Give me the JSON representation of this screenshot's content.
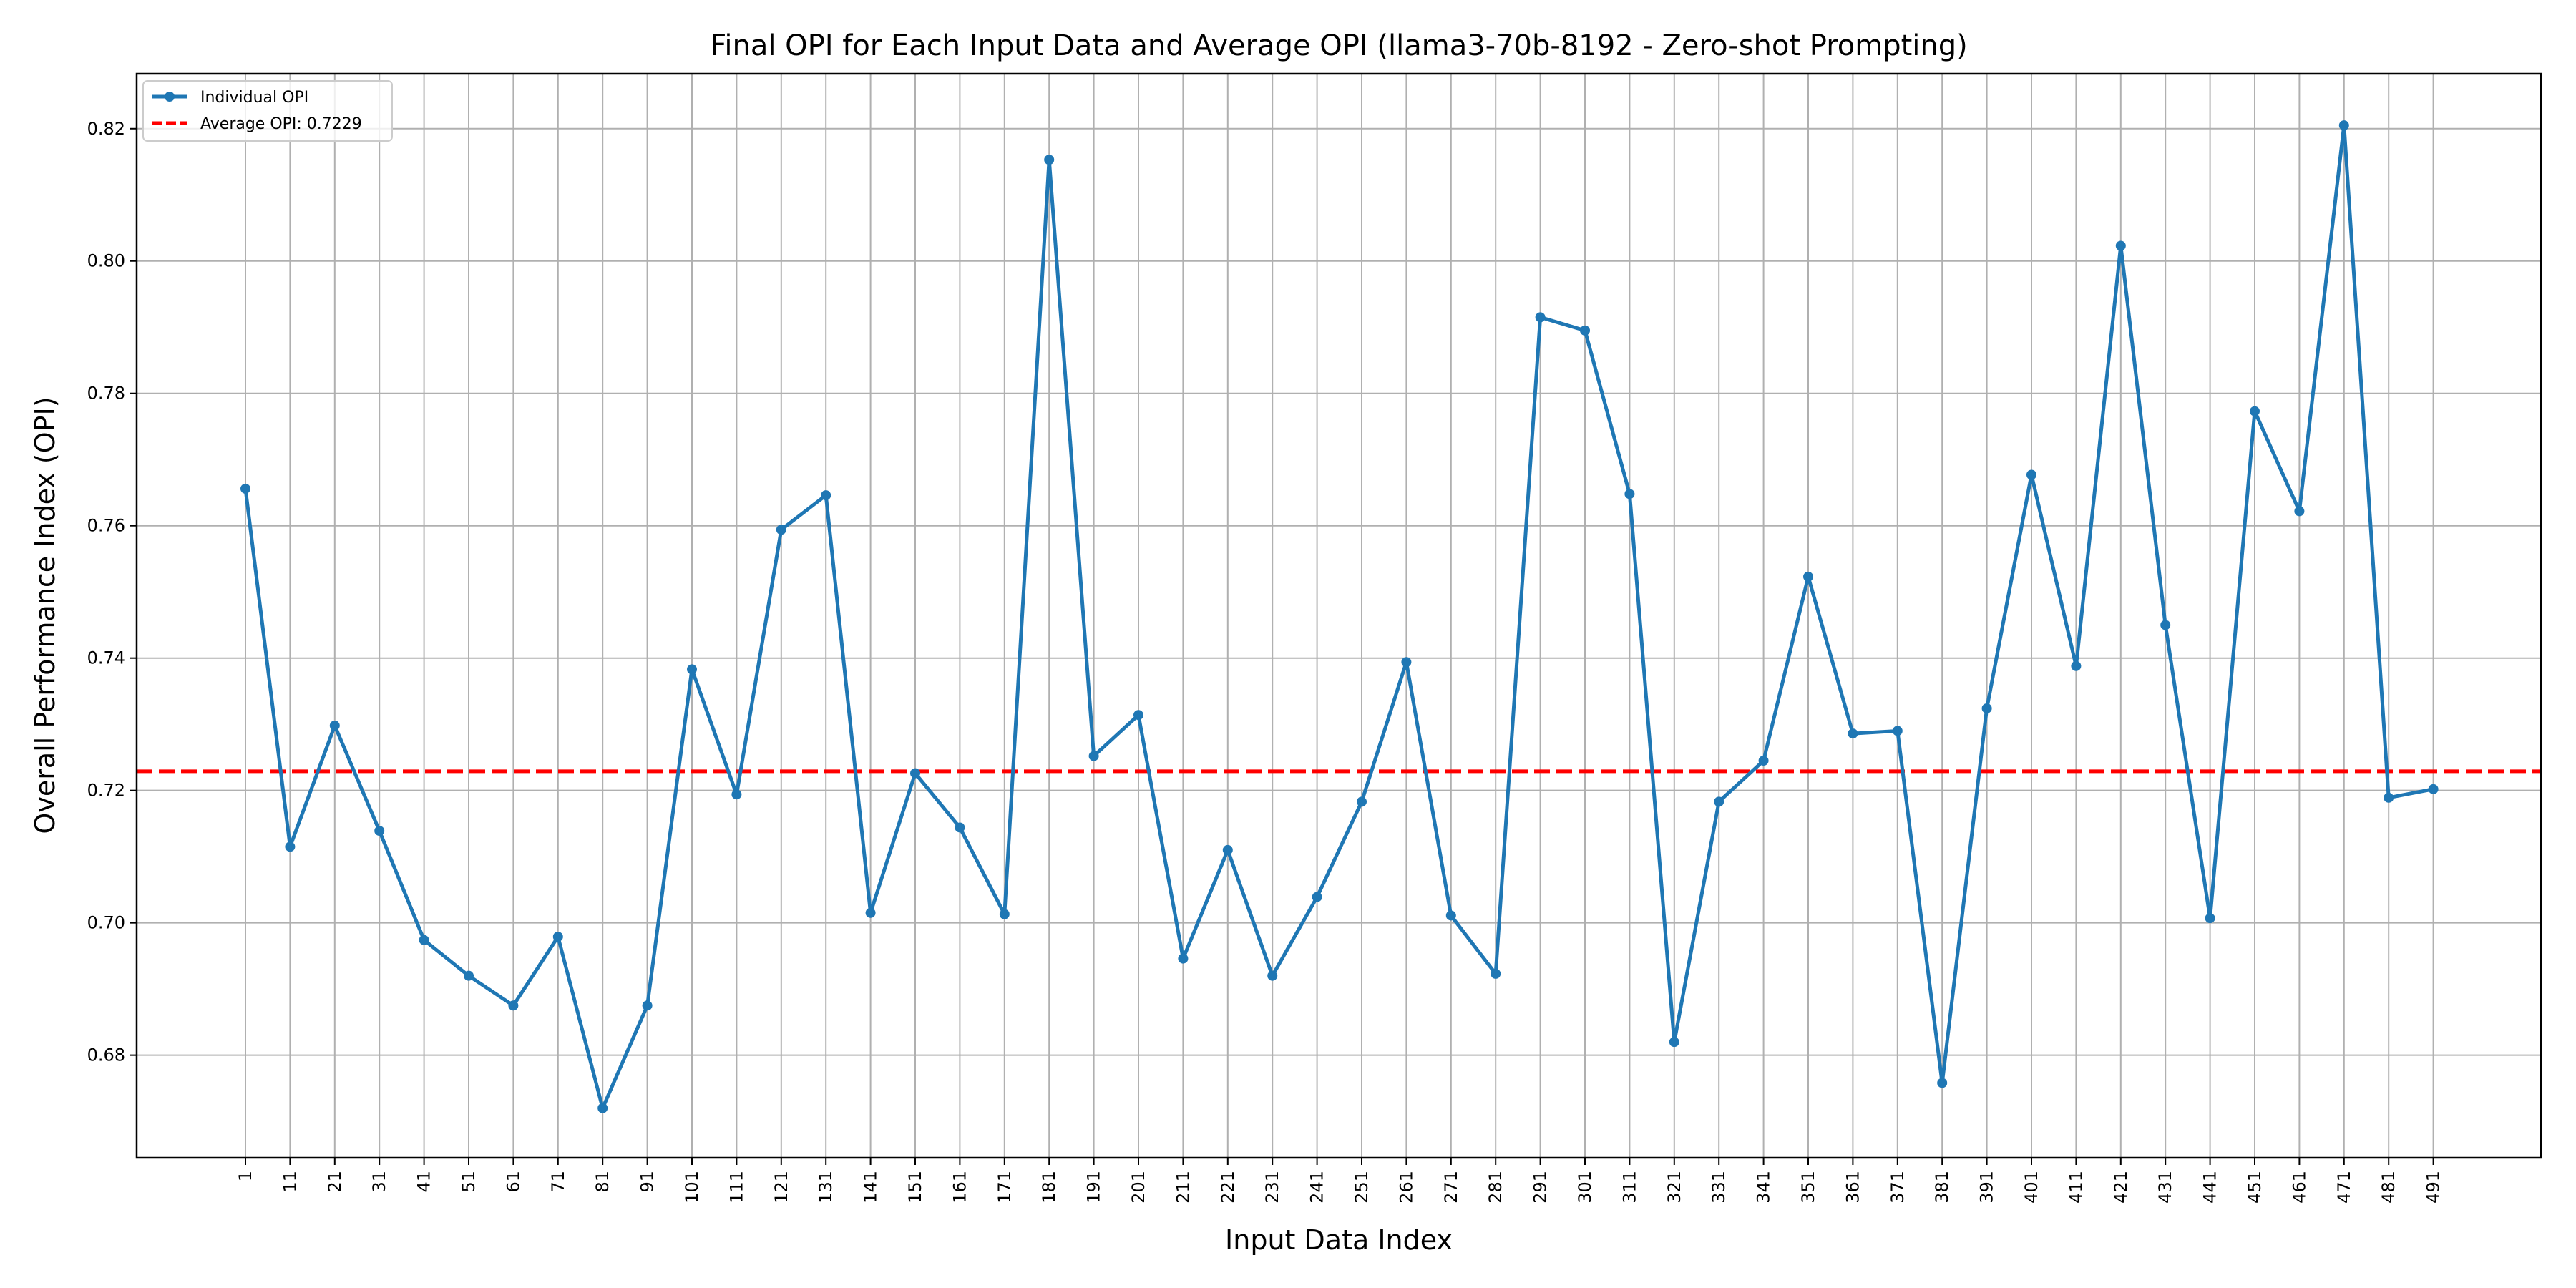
{
  "chart_data": {
    "type": "line",
    "title": "Final OPI for Each Input Data and Average OPI (llama3-70b-8192 - Zero-shot Prompting)",
    "xlabel": "Input Data Index",
    "ylabel": "Overall Performance Index (OPI)",
    "x": [
      1,
      11,
      21,
      31,
      41,
      51,
      61,
      71,
      81,
      91,
      101,
      111,
      121,
      131,
      141,
      151,
      161,
      171,
      181,
      191,
      201,
      211,
      221,
      231,
      241,
      251,
      261,
      271,
      281,
      291,
      301,
      311,
      321,
      331,
      341,
      351,
      361,
      371,
      381,
      391,
      401,
      411,
      421,
      431,
      441,
      451,
      461,
      471,
      481,
      491
    ],
    "xticks": [
      "1",
      "11",
      "21",
      "31",
      "41",
      "51",
      "61",
      "71",
      "81",
      "91",
      "101",
      "111",
      "121",
      "131",
      "141",
      "151",
      "161",
      "171",
      "181",
      "191",
      "201",
      "211",
      "221",
      "231",
      "241",
      "251",
      "261",
      "271",
      "281",
      "291",
      "301",
      "311",
      "321",
      "331",
      "341",
      "351",
      "361",
      "371",
      "381",
      "391",
      "401",
      "411",
      "421",
      "431",
      "441",
      "451",
      "461",
      "471",
      "481",
      "491"
    ],
    "yticks": [
      "0.68",
      "0.70",
      "0.72",
      "0.74",
      "0.76",
      "0.78",
      "0.80",
      "0.82"
    ],
    "ylim": [
      0.6645,
      0.8283
    ],
    "grid": true,
    "legend_position": "top-left",
    "series": [
      {
        "name": "Individual OPI",
        "color": "#1f77b4",
        "marker": "circle",
        "values": [
          0.7656,
          0.7115,
          0.7298,
          0.7139,
          0.6974,
          0.692,
          0.6875,
          0.6979,
          0.672,
          0.6875,
          0.7383,
          0.7194,
          0.7594,
          0.7646,
          0.7015,
          0.7226,
          0.7144,
          0.7013,
          0.8153,
          0.7252,
          0.7314,
          0.6946,
          0.711,
          0.692,
          0.7039,
          0.7183,
          0.7394,
          0.7011,
          0.6923,
          0.7915,
          0.7895,
          0.7648,
          0.682,
          0.7183,
          0.7245,
          0.7523,
          0.7286,
          0.729,
          0.6758,
          0.7324,
          0.7677,
          0.7388,
          0.8023,
          0.745,
          0.7007,
          0.7773,
          0.7622,
          0.8205,
          0.7189,
          0.7202
        ]
      }
    ],
    "reference_lines": [
      {
        "name": "Average OPI: 0.7229",
        "value": 0.7229,
        "color": "#ff0000",
        "style": "dashed"
      }
    ]
  }
}
